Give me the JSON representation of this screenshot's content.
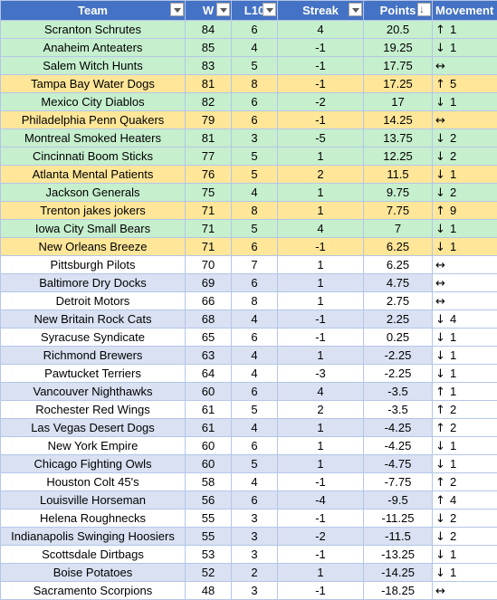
{
  "columns": {
    "team": "Team",
    "w": "W",
    "l10": "L10",
    "streak": "Streak",
    "points": "Points",
    "movement": "Movement"
  },
  "rows": [
    {
      "team": "Scranton Schrutes",
      "w": "84",
      "l10": "6",
      "streak": "4",
      "points": "20.5",
      "arrow": "↑",
      "move": "1",
      "style": "green"
    },
    {
      "team": "Anaheim Anteaters",
      "w": "85",
      "l10": "4",
      "streak": "-1",
      "points": "19.25",
      "arrow": "↓",
      "move": "1",
      "style": "green"
    },
    {
      "team": "Salem Witch Hunts",
      "w": "83",
      "l10": "5",
      "streak": "-1",
      "points": "17.75",
      "arrow": "↔",
      "move": "",
      "style": "green"
    },
    {
      "team": "Tampa Bay Water Dogs",
      "w": "81",
      "l10": "8",
      "streak": "-1",
      "points": "17.25",
      "arrow": "↑",
      "move": "5",
      "style": "yellow"
    },
    {
      "team": "Mexico City Diablos",
      "w": "82",
      "l10": "6",
      "streak": "-2",
      "points": "17",
      "arrow": "↓",
      "move": "1",
      "style": "green"
    },
    {
      "team": "Philadelphia Penn Quakers",
      "w": "79",
      "l10": "6",
      "streak": "-1",
      "points": "14.25",
      "arrow": "↔",
      "move": "",
      "style": "yellow"
    },
    {
      "team": "Montreal Smoked Heaters",
      "w": "81",
      "l10": "3",
      "streak": "-5",
      "points": "13.75",
      "arrow": "↓",
      "move": "2",
      "style": "green"
    },
    {
      "team": "Cincinnati Boom Sticks",
      "w": "77",
      "l10": "5",
      "streak": "1",
      "points": "12.25",
      "arrow": "↓",
      "move": "2",
      "style": "green"
    },
    {
      "team": "Atlanta Mental Patients",
      "w": "76",
      "l10": "5",
      "streak": "2",
      "points": "11.5",
      "arrow": "↓",
      "move": "1",
      "style": "yellow"
    },
    {
      "team": "Jackson Generals",
      "w": "75",
      "l10": "4",
      "streak": "1",
      "points": "9.75",
      "arrow": "↓",
      "move": "2",
      "style": "green"
    },
    {
      "team": "Trenton jakes jokers",
      "w": "71",
      "l10": "8",
      "streak": "1",
      "points": "7.75",
      "arrow": "↑",
      "move": "9",
      "style": "yellow"
    },
    {
      "team": "Iowa City Small Bears",
      "w": "71",
      "l10": "5",
      "streak": "4",
      "points": "7",
      "arrow": "↓",
      "move": "1",
      "style": "green"
    },
    {
      "team": "New Orleans Breeze",
      "w": "71",
      "l10": "6",
      "streak": "-1",
      "points": "6.25",
      "arrow": "↓",
      "move": "1",
      "style": "yellow"
    },
    {
      "team": "Pittsburgh Pilots",
      "w": "70",
      "l10": "7",
      "streak": "1",
      "points": "6.25",
      "arrow": "↔",
      "move": "",
      "style": "white"
    },
    {
      "team": "Baltimore Dry Docks",
      "w": "69",
      "l10": "6",
      "streak": "1",
      "points": "4.75",
      "arrow": "↔",
      "move": "",
      "style": "light"
    },
    {
      "team": "Detroit Motors",
      "w": "66",
      "l10": "8",
      "streak": "1",
      "points": "2.75",
      "arrow": "↔",
      "move": "",
      "style": "white"
    },
    {
      "team": "New Britain Rock Cats",
      "w": "68",
      "l10": "4",
      "streak": "-1",
      "points": "2.25",
      "arrow": "↓",
      "move": "4",
      "style": "light"
    },
    {
      "team": "Syracuse Syndicate",
      "w": "65",
      "l10": "6",
      "streak": "-1",
      "points": "0.25",
      "arrow": "↓",
      "move": "1",
      "style": "white"
    },
    {
      "team": "Richmond Brewers",
      "w": "63",
      "l10": "4",
      "streak": "1",
      "points": "-2.25",
      "arrow": "↓",
      "move": "1",
      "style": "light"
    },
    {
      "team": "Pawtucket Terriers",
      "w": "64",
      "l10": "4",
      "streak": "-3",
      "points": "-2.25",
      "arrow": "↓",
      "move": "1",
      "style": "white"
    },
    {
      "team": "Vancouver Nighthawks",
      "w": "60",
      "l10": "6",
      "streak": "4",
      "points": "-3.5",
      "arrow": "↑",
      "move": "1",
      "style": "light"
    },
    {
      "team": "Rochester Red Wings",
      "w": "61",
      "l10": "5",
      "streak": "2",
      "points": "-3.5",
      "arrow": "↑",
      "move": "2",
      "style": "white"
    },
    {
      "team": "Las Vegas Desert Dogs",
      "w": "61",
      "l10": "4",
      "streak": "1",
      "points": "-4.25",
      "arrow": "↑",
      "move": "2",
      "style": "light"
    },
    {
      "team": "New York Empire",
      "w": "60",
      "l10": "6",
      "streak": "1",
      "points": "-4.25",
      "arrow": "↓",
      "move": "1",
      "style": "white"
    },
    {
      "team": "Chicago Fighting Owls",
      "w": "60",
      "l10": "5",
      "streak": "1",
      "points": "-4.75",
      "arrow": "↓",
      "move": "1",
      "style": "light"
    },
    {
      "team": "Houston Colt 45's",
      "w": "58",
      "l10": "4",
      "streak": "-1",
      "points": "-7.75",
      "arrow": "↑",
      "move": "2",
      "style": "white"
    },
    {
      "team": "Louisville Horseman",
      "w": "56",
      "l10": "6",
      "streak": "-4",
      "points": "-9.5",
      "arrow": "↑",
      "move": "4",
      "style": "light"
    },
    {
      "team": "Helena Roughnecks",
      "w": "55",
      "l10": "3",
      "streak": "-1",
      "points": "-11.25",
      "arrow": "↓",
      "move": "2",
      "style": "white"
    },
    {
      "team": "Indianapolis Swinging Hoosiers",
      "w": "55",
      "l10": "3",
      "streak": "-2",
      "points": "-11.5",
      "arrow": "↓",
      "move": "2",
      "style": "light"
    },
    {
      "team": "Scottsdale Dirtbags",
      "w": "53",
      "l10": "3",
      "streak": "-1",
      "points": "-13.25",
      "arrow": "↓",
      "move": "1",
      "style": "white"
    },
    {
      "team": "Boise Potatoes",
      "w": "52",
      "l10": "2",
      "streak": "1",
      "points": "-14.25",
      "arrow": "↓",
      "move": "1",
      "style": "light"
    },
    {
      "team": "Sacramento Scorpions",
      "w": "48",
      "l10": "3",
      "streak": "-1",
      "points": "-18.25",
      "arrow": "↔",
      "move": "",
      "style": "white"
    }
  ],
  "icons": {
    "filter": "filter-dropdown-icon",
    "sorted_filter": "sort-descending-filter-icon"
  },
  "colors": {
    "header": "#4472c4",
    "playoff_green": "#c6efce",
    "playoff_yellow": "#ffe699",
    "band": "#d9e1f2"
  }
}
